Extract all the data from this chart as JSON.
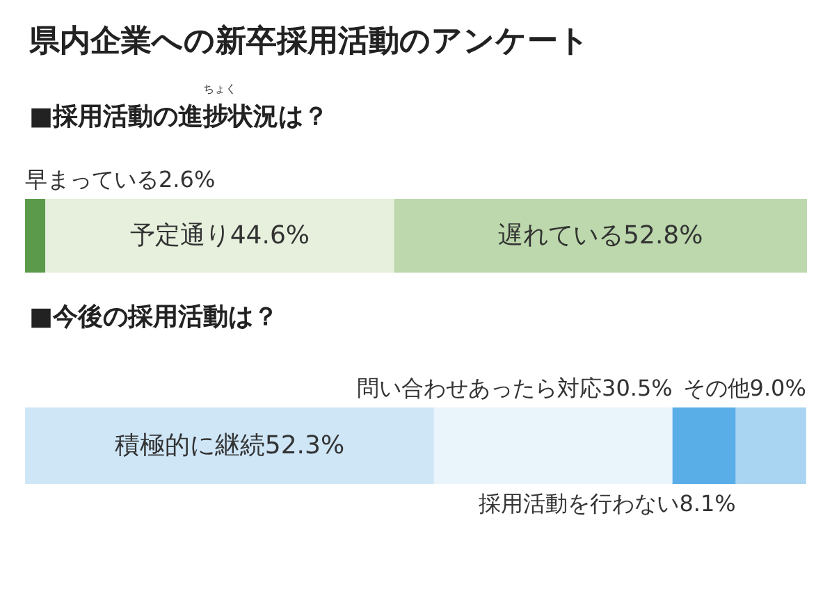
{
  "chart_data": [
    {
      "type": "bar",
      "orientation": "horizontal",
      "stacked": true,
      "title": "県内企業への新卒採用活動のアンケート",
      "subtitle": "■採用活動の進捗状況は？",
      "annotations": [
        "ちょく"
      ],
      "categories": [
        null
      ],
      "xlim": [
        0,
        100
      ],
      "tick_labels": false,
      "series": [
        {
          "color": "#5a9a4a",
          "values": [
            2.6
          ],
          "value_labels": [
            "早まっている2.6%"
          ]
        },
        {
          "color": "#e6f0dc",
          "values": [
            44.6
          ],
          "value_labels": [
            "予定通り44.6%"
          ]
        },
        {
          "color": "#bcd8ac",
          "values": [
            52.8
          ],
          "value_labels": [
            "遅れている52.8%"
          ]
        }
      ]
    },
    {
      "type": "bar",
      "orientation": "horizontal",
      "stacked": true,
      "title": "■今後の採用活動は？",
      "categories": [
        null
      ],
      "xlim": [
        0,
        100
      ],
      "tick_labels": false,
      "series": [
        {
          "color": "#cfe6f7",
          "values": [
            52.3
          ],
          "value_labels": [
            "積極的に継続52.3%"
          ]
        },
        {
          "color": "#eaf4fb",
          "values": [
            30.5
          ],
          "value_labels": [
            "問い合わせあったら対応30.5%"
          ]
        },
        {
          "color": "#5aaee8",
          "values": [
            8.1
          ],
          "value_labels": [
            "採用活動を行わない8.1%"
          ]
        },
        {
          "color": "#a9d4f2",
          "values": [
            9.0
          ],
          "value_labels": [
            "その他9.0%"
          ]
        }
      ]
    }
  ]
}
